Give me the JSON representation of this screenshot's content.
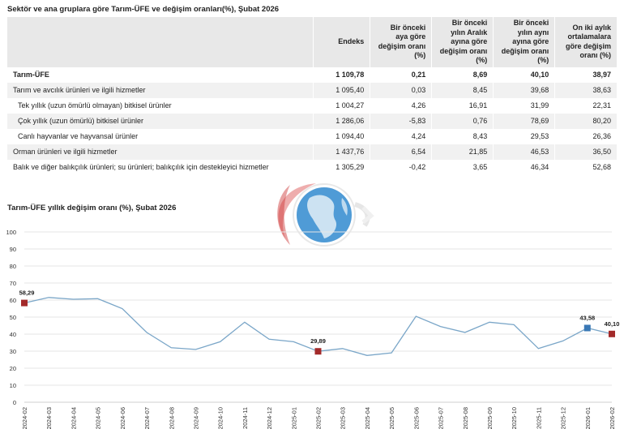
{
  "table": {
    "title": "Sektör ve ana gruplara göre Tarım-ÜFE ve değişim oranları(%), Şubat 2026",
    "headers": [
      "",
      "Endeks",
      "Bir önceki aya göre değişim oranı (%)",
      "Bir önceki yılın Aralık ayına göre değişim oranı (%)",
      "Bir önceki yılın aynı ayına göre değişim oranı (%)",
      "On iki aylık ortalamalara göre değişim oranı (%)"
    ],
    "rows": [
      {
        "label": "Tarım-ÜFE",
        "endeks": "1 109,78",
        "aylik": "0,21",
        "aralik": "8,69",
        "yillik": "40,10",
        "ortalama": "38,97"
      },
      {
        "label": "Tarım ve avcılık ürünleri ve ilgili hizmetler",
        "endeks": "1 095,40",
        "aylik": "0,03",
        "aralik": "8,45",
        "yillik": "39,68",
        "ortalama": "38,63"
      },
      {
        "label": "Tek yıllık (uzun ömürlü olmayan) bitkisel ürünler",
        "endeks": "1 004,27",
        "aylik": "4,26",
        "aralik": "16,91",
        "yillik": "31,99",
        "ortalama": "22,31"
      },
      {
        "label": "Çok yıllık (uzun ömürlü) bitkisel ürünler",
        "endeks": "1 286,06",
        "aylik": "-5,83",
        "aralik": "0,76",
        "yillik": "78,69",
        "ortalama": "80,20"
      },
      {
        "label": "Canlı hayvanlar ve hayvansal ürünler",
        "endeks": "1 094,40",
        "aylik": "4,24",
        "aralik": "8,43",
        "yillik": "29,53",
        "ortalama": "26,36"
      },
      {
        "label": "Orman ürünleri ve ilgili hizmetler",
        "endeks": "1 437,76",
        "aylik": "6,54",
        "aralik": "21,85",
        "yillik": "46,53",
        "ortalama": "36,50"
      },
      {
        "label": "Balık ve diğer balıkçılık ürünleri; su ürünleri; balıkçılık için destekleyici hizmetler",
        "endeks": "1 305,29",
        "aylik": "-0,42",
        "aralik": "3,65",
        "yillik": "46,34",
        "ortalama": "52,68"
      }
    ]
  },
  "chart_data": {
    "type": "line",
    "title": "Tarım-ÜFE yıllık değişim oranı (%), Şubat 2026",
    "ylim": [
      0,
      100
    ],
    "yticks": [
      0,
      10,
      20,
      30,
      40,
      50,
      60,
      70,
      80,
      90,
      100
    ],
    "grid": true,
    "x": [
      "2024-02",
      "2024-03",
      "2024-04",
      "2024-05",
      "2024-06",
      "2024-07",
      "2024-08",
      "2024-09",
      "2024-10",
      "2024-11",
      "2024-12",
      "2025-01",
      "2025-02",
      "2025-03",
      "2025-04",
      "2025-05",
      "2025-06",
      "2025-07",
      "2025-08",
      "2025-09",
      "2025-10",
      "2025-11",
      "2025-12",
      "2026-01",
      "2026-02"
    ],
    "series": [
      {
        "values": [
          58.29,
          61.5,
          60.5,
          60.8,
          55,
          41,
          32,
          31,
          35.5,
          47,
          37,
          35.5,
          29.89,
          31.5,
          27.5,
          29,
          50.5,
          44.5,
          41,
          47,
          45.5,
          31.5,
          36,
          43.58,
          40.1
        ]
      }
    ],
    "markers": [
      {
        "index": 0,
        "label": "58,29",
        "color": "#a32a2a"
      },
      {
        "index": 12,
        "label": "29,89",
        "color": "#a32a2a"
      },
      {
        "index": 23,
        "label": "43,58",
        "color": "#3a78b5"
      },
      {
        "index": 24,
        "label": "40,10",
        "color": "#a32a2a"
      }
    ],
    "line_color": "#7aa6c8",
    "grid_color": "#e6e6e6"
  }
}
